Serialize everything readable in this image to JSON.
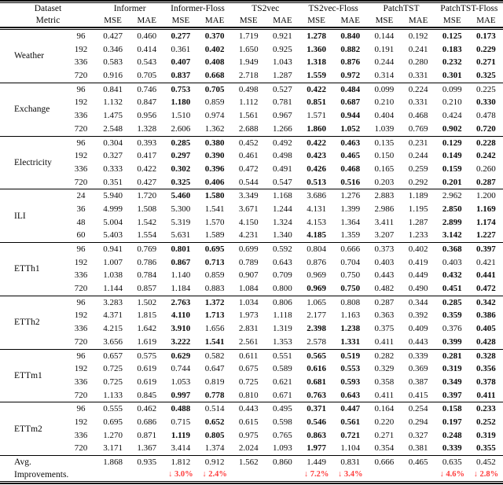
{
  "table": {
    "header": {
      "corner": [
        "Dataset",
        "Metric"
      ],
      "groups": [
        "Informer",
        "Informer-Floss",
        "TS2vec",
        "TS2vec-Floss",
        "PatchTST",
        "PatchTST-Floss"
      ],
      "metric_labels": [
        "MSE",
        "MAE",
        "MSE",
        "MAE",
        "MSE",
        "MAE",
        "MSE",
        "MAE",
        "MSE",
        "MAE",
        "MSE",
        "MAE"
      ]
    },
    "blocks": [
      {
        "dataset": "Weather",
        "rows": [
          {
            "horizon": "96",
            "values": [
              "0.427",
              "0.460",
              "0.277",
              "0.370",
              "1.719",
              "0.921",
              "1.278",
              "0.840",
              "0.144",
              "0.192",
              "0.125",
              "0.173"
            ],
            "bold": [
              2,
              3,
              6,
              7,
              10,
              11
            ]
          },
          {
            "horizon": "192",
            "values": [
              "0.346",
              "0.414",
              "0.361",
              "0.402",
              "1.650",
              "0.925",
              "1.360",
              "0.882",
              "0.191",
              "0.241",
              "0.183",
              "0.229"
            ],
            "bold": [
              3,
              6,
              7,
              10,
              11
            ]
          },
          {
            "horizon": "336",
            "values": [
              "0.583",
              "0.543",
              "0.407",
              "0.408",
              "1.949",
              "1.043",
              "1.318",
              "0.876",
              "0.244",
              "0.280",
              "0.232",
              "0.271"
            ],
            "bold": [
              2,
              3,
              6,
              7,
              10,
              11
            ]
          },
          {
            "horizon": "720",
            "values": [
              "0.916",
              "0.705",
              "0.837",
              "0.668",
              "2.718",
              "1.287",
              "1.559",
              "0.972",
              "0.314",
              "0.331",
              "0.301",
              "0.325"
            ],
            "bold": [
              2,
              3,
              6,
              7,
              10,
              11
            ]
          }
        ]
      },
      {
        "dataset": "Exchange",
        "rows": [
          {
            "horizon": "96",
            "values": [
              "0.841",
              "0.746",
              "0.753",
              "0.705",
              "0.498",
              "0.527",
              "0.422",
              "0.484",
              "0.099",
              "0.224",
              "0.099",
              "0.225"
            ],
            "bold": [
              2,
              3,
              6,
              7
            ]
          },
          {
            "horizon": "192",
            "values": [
              "1.132",
              "0.847",
              "1.180",
              "0.859",
              "1.112",
              "0.781",
              "0.851",
              "0.687",
              "0.210",
              "0.331",
              "0.210",
              "0.330"
            ],
            "bold": [
              2,
              6,
              7,
              11
            ]
          },
          {
            "horizon": "336",
            "values": [
              "1.475",
              "0.956",
              "1.510",
              "0.974",
              "1.561",
              "0.967",
              "1.571",
              "0.944",
              "0.404",
              "0.468",
              "0.424",
              "0.478"
            ],
            "bold": [
              7
            ]
          },
          {
            "horizon": "720",
            "values": [
              "2.548",
              "1.328",
              "2.606",
              "1.362",
              "2.688",
              "1.266",
              "1.860",
              "1.052",
              "1.039",
              "0.769",
              "0.902",
              "0.720"
            ],
            "bold": [
              6,
              7,
              10,
              11
            ]
          }
        ]
      },
      {
        "dataset": "Electricity",
        "rows": [
          {
            "horizon": "96",
            "values": [
              "0.304",
              "0.393",
              "0.285",
              "0.380",
              "0.452",
              "0.492",
              "0.422",
              "0.463",
              "0.135",
              "0.231",
              "0.129",
              "0.228"
            ],
            "bold": [
              2,
              3,
              6,
              7,
              10,
              11
            ]
          },
          {
            "horizon": "192",
            "values": [
              "0.327",
              "0.417",
              "0.297",
              "0.390",
              "0.461",
              "0.498",
              "0.423",
              "0.465",
              "0.150",
              "0.244",
              "0.149",
              "0.242"
            ],
            "bold": [
              2,
              3,
              6,
              7,
              10,
              11
            ]
          },
          {
            "horizon": "336",
            "values": [
              "0.333",
              "0.422",
              "0.302",
              "0.396",
              "0.472",
              "0.491",
              "0.426",
              "0.468",
              "0.165",
              "0.259",
              "0.159",
              "0.260"
            ],
            "bold": [
              2,
              3,
              6,
              7,
              10
            ]
          },
          {
            "horizon": "720",
            "values": [
              "0.351",
              "0.427",
              "0.325",
              "0.406",
              "0.544",
              "0.547",
              "0.513",
              "0.516",
              "0.203",
              "0.292",
              "0.201",
              "0.287"
            ],
            "bold": [
              2,
              3,
              6,
              7,
              10,
              11
            ]
          }
        ]
      },
      {
        "dataset": "ILI",
        "rows": [
          {
            "horizon": "24",
            "values": [
              "5.940",
              "1.720",
              "5.460",
              "1.580",
              "3.349",
              "1.168",
              "3.686",
              "1.276",
              "2.883",
              "1.189",
              "2.962",
              "1.200"
            ],
            "bold": [
              2,
              3
            ]
          },
          {
            "horizon": "36",
            "values": [
              "4.999",
              "1.508",
              "5.300",
              "1.541",
              "3.671",
              "1.244",
              "4.131",
              "1.399",
              "2.986",
              "1.195",
              "2.850",
              "1.169"
            ],
            "bold": [
              10,
              11
            ]
          },
          {
            "horizon": "48",
            "values": [
              "5.004",
              "1.542",
              "5.319",
              "1.570",
              "4.150",
              "1.324",
              "4.153",
              "1.364",
              "3.411",
              "1.287",
              "2.899",
              "1.174"
            ],
            "bold": [
              10,
              11
            ]
          },
          {
            "horizon": "60",
            "values": [
              "5.403",
              "1.554",
              "5.631",
              "1.589",
              "4.231",
              "1.340",
              "4.185",
              "1.359",
              "3.207",
              "1.233",
              "3.142",
              "1.227"
            ],
            "bold": [
              6,
              10,
              11
            ]
          }
        ]
      },
      {
        "dataset": "ETTh1",
        "rows": [
          {
            "horizon": "96",
            "values": [
              "0.941",
              "0.769",
              "0.801",
              "0.695",
              "0.699",
              "0.592",
              "0.804",
              "0.666",
              "0.373",
              "0.402",
              "0.368",
              "0.397"
            ],
            "bold": [
              2,
              3,
              10,
              11
            ]
          },
          {
            "horizon": "192",
            "values": [
              "1.007",
              "0.786",
              "0.867",
              "0.713",
              "0.789",
              "0.643",
              "0.876",
              "0.704",
              "0.403",
              "0.419",
              "0.403",
              "0.421"
            ],
            "bold": [
              2,
              3
            ]
          },
          {
            "horizon": "336",
            "values": [
              "1.038",
              "0.784",
              "1.140",
              "0.859",
              "0.907",
              "0.709",
              "0.969",
              "0.750",
              "0.443",
              "0.449",
              "0.432",
              "0.441"
            ],
            "bold": [
              10,
              11
            ]
          },
          {
            "horizon": "720",
            "values": [
              "1.144",
              "0.857",
              "1.184",
              "0.883",
              "1.084",
              "0.800",
              "0.969",
              "0.750",
              "0.482",
              "0.490",
              "0.451",
              "0.472"
            ],
            "bold": [
              6,
              7,
              10,
              11
            ]
          }
        ]
      },
      {
        "dataset": "ETTh2",
        "rows": [
          {
            "horizon": "96",
            "values": [
              "3.283",
              "1.502",
              "2.763",
              "1.372",
              "1.034",
              "0.806",
              "1.065",
              "0.808",
              "0.287",
              "0.344",
              "0.285",
              "0.342"
            ],
            "bold": [
              2,
              3,
              10,
              11
            ]
          },
          {
            "horizon": "192",
            "values": [
              "4.371",
              "1.815",
              "4.110",
              "1.713",
              "1.973",
              "1.118",
              "2.177",
              "1.163",
              "0.363",
              "0.392",
              "0.359",
              "0.386"
            ],
            "bold": [
              2,
              3,
              10,
              11
            ]
          },
          {
            "horizon": "336",
            "values": [
              "4.215",
              "1.642",
              "3.910",
              "1.656",
              "2.831",
              "1.319",
              "2.398",
              "1.238",
              "0.375",
              "0.409",
              "0.376",
              "0.405"
            ],
            "bold": [
              2,
              6,
              7,
              11
            ]
          },
          {
            "horizon": "720",
            "values": [
              "3.656",
              "1.619",
              "3.222",
              "1.541",
              "2.561",
              "1.353",
              "2.578",
              "1.331",
              "0.411",
              "0.443",
              "0.399",
              "0.428"
            ],
            "bold": [
              2,
              3,
              7,
              10,
              11
            ]
          }
        ]
      },
      {
        "dataset": "ETTm1",
        "rows": [
          {
            "horizon": "96",
            "values": [
              "0.657",
              "0.575",
              "0.629",
              "0.582",
              "0.611",
              "0.551",
              "0.565",
              "0.519",
              "0.282",
              "0.339",
              "0.281",
              "0.328"
            ],
            "bold": [
              2,
              6,
              7,
              10,
              11
            ]
          },
          {
            "horizon": "192",
            "values": [
              "0.725",
              "0.619",
              "0.744",
              "0.647",
              "0.675",
              "0.589",
              "0.616",
              "0.553",
              "0.329",
              "0.369",
              "0.319",
              "0.356"
            ],
            "bold": [
              6,
              7,
              10,
              11
            ]
          },
          {
            "horizon": "336",
            "values": [
              "0.725",
              "0.619",
              "1.053",
              "0.819",
              "0.725",
              "0.621",
              "0.681",
              "0.593",
              "0.358",
              "0.387",
              "0.349",
              "0.378"
            ],
            "bold": [
              6,
              7,
              10,
              11
            ]
          },
          {
            "horizon": "720",
            "values": [
              "1.133",
              "0.845",
              "0.997",
              "0.778",
              "0.810",
              "0.671",
              "0.763",
              "0.643",
              "0.411",
              "0.415",
              "0.397",
              "0.411"
            ],
            "bold": [
              2,
              3,
              6,
              7,
              10,
              11
            ]
          }
        ]
      },
      {
        "dataset": "ETTm2",
        "rows": [
          {
            "horizon": "96",
            "values": [
              "0.555",
              "0.462",
              "0.488",
              "0.514",
              "0.443",
              "0.495",
              "0.371",
              "0.447",
              "0.164",
              "0.254",
              "0.158",
              "0.233"
            ],
            "bold": [
              2,
              6,
              7,
              10,
              11
            ]
          },
          {
            "horizon": "192",
            "values": [
              "0.695",
              "0.686",
              "0.715",
              "0.652",
              "0.615",
              "0.598",
              "0.546",
              "0.561",
              "0.220",
              "0.294",
              "0.197",
              "0.252"
            ],
            "bold": [
              3,
              6,
              7,
              10,
              11
            ]
          },
          {
            "horizon": "336",
            "values": [
              "1.270",
              "0.871",
              "1.119",
              "0.805",
              "0.975",
              "0.765",
              "0.863",
              "0.721",
              "0.271",
              "0.327",
              "0.248",
              "0.319"
            ],
            "bold": [
              2,
              3,
              6,
              7,
              10,
              11
            ]
          },
          {
            "horizon": "720",
            "values": [
              "3.171",
              "1.367",
              "3.414",
              "1.374",
              "2.024",
              "1.093",
              "1.977",
              "1.104",
              "0.354",
              "0.381",
              "0.339",
              "0.355"
            ],
            "bold": [
              6,
              10,
              11
            ]
          }
        ]
      }
    ],
    "footer": {
      "label_lines": [
        "Avg.",
        "Improvements."
      ],
      "values": [
        "1.868",
        "0.935",
        "1.812",
        "0.912",
        "1.562",
        "0.860",
        "1.449",
        "0.831",
        "0.666",
        "0.465",
        "0.635",
        "0.452"
      ],
      "improvements": [
        "",
        "",
        "↓ 3.0%",
        "↓ 2.4%",
        "",
        "",
        "↓ 7.2%",
        "↓ 3.4%",
        "",
        "",
        "↓ 4.6%",
        "↓ 2.8%"
      ]
    },
    "colors": {
      "improvement_red": "#ff3b3b",
      "rule_black": "#000000"
    }
  }
}
